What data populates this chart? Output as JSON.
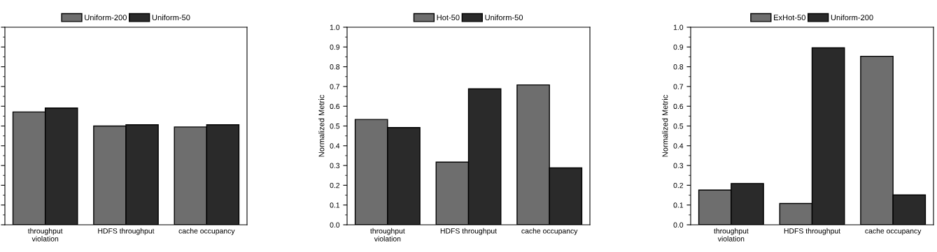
{
  "chart_data": [
    {
      "type": "bar",
      "categories": [
        "throughput\nviolation",
        "HDFS throughput",
        "cache occupancy"
      ],
      "legend": "top",
      "tick_labels": "x",
      "ylim": [
        0,
        1.0
      ],
      "yticks": [
        {
          "value": 0,
          "label": null
        },
        {
          "value": 0.1,
          "label": null
        },
        {
          "value": 0.2,
          "label": null
        },
        {
          "value": 0.3,
          "label": null
        },
        {
          "value": 0.4,
          "label": null
        },
        {
          "value": 0.5,
          "label": null
        },
        {
          "value": 0.6,
          "label": null
        },
        {
          "value": 0.7,
          "label": null
        },
        {
          "value": 0.8,
          "label": null
        },
        {
          "value": 0.9,
          "label": null
        },
        {
          "value": 1.0,
          "label": null
        }
      ],
      "series": [
        {
          "name": "Uniform-200",
          "color": "#6e6e6e",
          "values": [
            0.571,
            0.5,
            0.495
          ]
        },
        {
          "name": "Uniform-50",
          "color": "#2a2a2a",
          "values": [
            0.591,
            0.506,
            0.506
          ]
        }
      ]
    },
    {
      "type": "bar",
      "categories": [
        "throughput\nviolation",
        "HDFS throughput",
        "cache occupancy"
      ],
      "legend": "top",
      "ylabel": "Normalized Metric",
      "ylim": [
        0,
        1.0
      ],
      "yticks": [
        {
          "value": 0,
          "label": "0.0"
        },
        0.1,
        0.2,
        0.3,
        0.4,
        0.5,
        0.6,
        0.7,
        0.8,
        0.9,
        {
          "value": 1.0,
          "label": "1.0"
        }
      ],
      "series": [
        {
          "name": "Hot-50",
          "color": "#6e6e6e",
          "values": [
            0.533,
            0.317,
            0.708
          ]
        },
        {
          "name": "Uniform-50",
          "color": "#2a2a2a",
          "values": [
            0.492,
            0.688,
            0.288
          ]
        }
      ]
    },
    {
      "type": "bar",
      "categories": [
        "throughput\nviolation",
        "HDFS throughput",
        "cache occupancy"
      ],
      "legend": "top",
      "ylabel": "Normalized Metric",
      "ylim": [
        0,
        1.0
      ],
      "yticks": [
        {
          "value": 0,
          "label": "0.0"
        },
        0.1,
        0.2,
        0.3,
        0.4,
        0.5,
        0.6,
        0.7,
        0.8,
        0.9,
        {
          "value": 1.0,
          "label": "1.0"
        }
      ],
      "series": [
        {
          "name": "ExHot-50",
          "color": "#6e6e6e",
          "values": [
            0.176,
            0.108,
            0.853
          ]
        },
        {
          "name": "Uniform-200",
          "color": "#2a2a2a",
          "values": [
            0.209,
            0.896,
            0.151
          ]
        }
      ]
    }
  ]
}
